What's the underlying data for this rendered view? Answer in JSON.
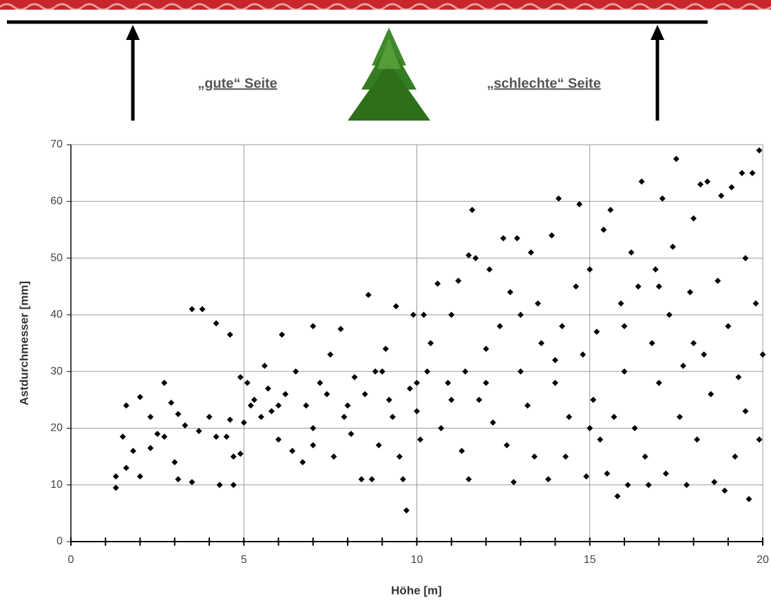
{
  "diagram": {
    "left_label": "„gute“ Seite",
    "right_label": "„schlechte“ Seite"
  },
  "chart_data": {
    "type": "scatter",
    "xlabel": "Höhe [m]",
    "ylabel": "Astdurchmesser [mm]",
    "color": "#000000",
    "grid": true,
    "xlim": [
      0,
      20
    ],
    "ylim": [
      0,
      70
    ],
    "xticks": [
      0,
      5,
      10,
      15,
      20
    ],
    "yticks": [
      0,
      10,
      20,
      30,
      40,
      50,
      60,
      70
    ],
    "xminorticks": [
      1,
      2,
      3,
      4,
      6,
      7,
      8,
      9,
      11,
      12,
      13,
      14,
      16,
      17,
      18,
      19
    ],
    "x": [
      1.3,
      1.3,
      1.5,
      1.6,
      1.6,
      1.8,
      2,
      2,
      2.3,
      2.3,
      2.5,
      2.7,
      2.7,
      2.9,
      3,
      3.1,
      3.1,
      3.3,
      3.5,
      3.5,
      3.7,
      3.8,
      4,
      4.2,
      4.2,
      4.3,
      4.5,
      4.6,
      4.6,
      4.7,
      4.7,
      4.9,
      4.9,
      5,
      5.1,
      5.2,
      5.3,
      5.5,
      5.6,
      5.7,
      5.8,
      6,
      6.1,
      6.2,
      6.4,
      6.5,
      6.7,
      6.8,
      7,
      7,
      7.2,
      7.4,
      7.5,
      7.6,
      7.8,
      7.9,
      8.1,
      8.2,
      8.4,
      8.5,
      8.6,
      8.7,
      8.8,
      8.9,
      9.1,
      9.2,
      9.3,
      9.4,
      9.5,
      9.6,
      9.7,
      9.8,
      9.9,
      10,
      10.1,
      10.2,
      10.3,
      10.4,
      10.6,
      10.7,
      10.9,
      11,
      11.2,
      11.3,
      11.4,
      11.5,
      11.5,
      11.6,
      11.7,
      11.8,
      12,
      12.1,
      12.2,
      12.4,
      12.5,
      12.6,
      12.7,
      12.8,
      12.9,
      13,
      13.2,
      13.3,
      13.4,
      13.5,
      13.6,
      13.8,
      13.9,
      14,
      14.1,
      14.2,
      14.3,
      14.4,
      14.6,
      14.7,
      14.8,
      14.9,
      15,
      15.1,
      15.2,
      15.3,
      15.4,
      15.5,
      15.6,
      15.7,
      15.8,
      15.9,
      16,
      16.1,
      16.2,
      16.3,
      16.4,
      16.5,
      16.6,
      16.7,
      16.8,
      16.9,
      17,
      17.1,
      17.2,
      17.3,
      17.4,
      17.5,
      17.6,
      17.7,
      17.8,
      17.9,
      18,
      18.1,
      18.2,
      18.3,
      18.4,
      18.5,
      18.6,
      18.7,
      18.8,
      18.9,
      19,
      19.1,
      19.2,
      19.3,
      19.4,
      19.5,
      19.6,
      19.7,
      19.8,
      19.9,
      20,
      19.9,
      19.5,
      18,
      17,
      16,
      15,
      14,
      13,
      12,
      11,
      10,
      9,
      8,
      7,
      6
    ],
    "values": [
      11.5,
      9.5,
      18.5,
      13,
      24,
      16,
      25.5,
      11.5,
      22,
      16.5,
      19,
      28,
      18.5,
      24.5,
      14,
      22.5,
      11,
      20.5,
      41,
      10.5,
      19.5,
      41,
      22,
      38.5,
      18.5,
      10,
      18.5,
      21.5,
      36.5,
      10,
      15,
      29,
      15.5,
      21,
      28,
      24,
      25,
      22,
      31,
      27,
      23,
      18,
      36.5,
      26,
      16,
      30,
      14,
      24,
      38,
      17,
      28,
      26,
      33,
      15,
      37.5,
      22,
      19,
      29,
      11,
      26,
      43.5,
      11,
      30,
      17,
      34,
      25,
      22,
      41.5,
      15,
      11,
      5.5,
      27,
      40,
      23,
      18,
      40,
      30,
      35,
      45.5,
      20,
      28,
      40,
      46,
      16,
      30,
      50.5,
      11,
      58.5,
      50,
      25,
      34,
      48,
      21,
      38,
      53.5,
      17,
      44,
      10.5,
      53.5,
      30,
      24,
      51,
      15,
      42,
      35,
      11,
      54,
      28,
      60.5,
      38,
      15,
      22,
      45,
      59.5,
      33,
      11.5,
      48,
      25,
      37,
      18,
      55,
      12,
      58.5,
      22,
      8,
      42,
      30,
      10,
      51,
      20,
      45,
      63.5,
      15,
      10,
      35,
      48,
      28,
      60.5,
      12,
      40,
      52,
      67.5,
      22,
      31,
      10,
      44,
      57,
      18,
      63,
      33,
      63.5,
      26,
      10.5,
      46,
      61,
      9,
      38,
      62.5,
      15,
      29,
      65,
      50,
      7.5,
      65,
      42,
      69,
      33,
      18,
      23,
      35,
      45,
      38,
      20,
      32,
      40,
      28,
      25,
      28,
      30,
      24,
      20,
      24
    ]
  }
}
